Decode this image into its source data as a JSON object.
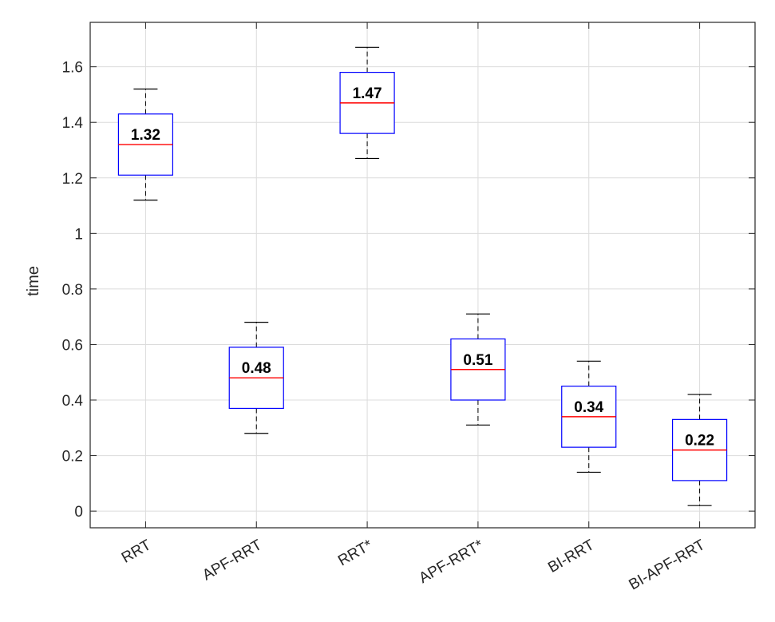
{
  "chart_data": {
    "type": "box",
    "title": "",
    "xlabel": "",
    "ylabel": "time",
    "ylim": [
      -0.06,
      1.76
    ],
    "yticks": [
      0,
      0.2,
      0.4,
      0.6,
      0.8,
      1,
      1.2,
      1.4,
      1.6
    ],
    "ytick_labels": [
      "0",
      "0.2",
      "0.4",
      "0.6",
      "0.8",
      "1",
      "1.2",
      "1.4",
      "1.6"
    ],
    "grid": true,
    "categories": [
      "RRT",
      "APF-RRT",
      "RRT*",
      "APF-RRT*",
      "BI-RRT",
      "BI-APF-RRT"
    ],
    "boxes": [
      {
        "min": 1.12,
        "q1": 1.21,
        "median": 1.32,
        "q3": 1.43,
        "max": 1.52,
        "median_label": "1.32"
      },
      {
        "min": 0.28,
        "q1": 0.37,
        "median": 0.48,
        "q3": 0.59,
        "max": 0.68,
        "median_label": "0.48"
      },
      {
        "min": 1.27,
        "q1": 1.36,
        "median": 1.47,
        "q3": 1.58,
        "max": 1.67,
        "median_label": "1.47"
      },
      {
        "min": 0.31,
        "q1": 0.4,
        "median": 0.51,
        "q3": 0.62,
        "max": 0.71,
        "median_label": "0.51"
      },
      {
        "min": 0.14,
        "q1": 0.23,
        "median": 0.34,
        "q3": 0.45,
        "max": 0.54,
        "median_label": "0.34"
      },
      {
        "min": 0.02,
        "q1": 0.11,
        "median": 0.22,
        "q3": 0.33,
        "max": 0.42,
        "median_label": "0.22"
      }
    ],
    "colors": {
      "box": "#0000ff",
      "median": "#ff0000",
      "whisker": "#000000",
      "grid": "#dcdcdc",
      "axis": "#262626"
    }
  }
}
